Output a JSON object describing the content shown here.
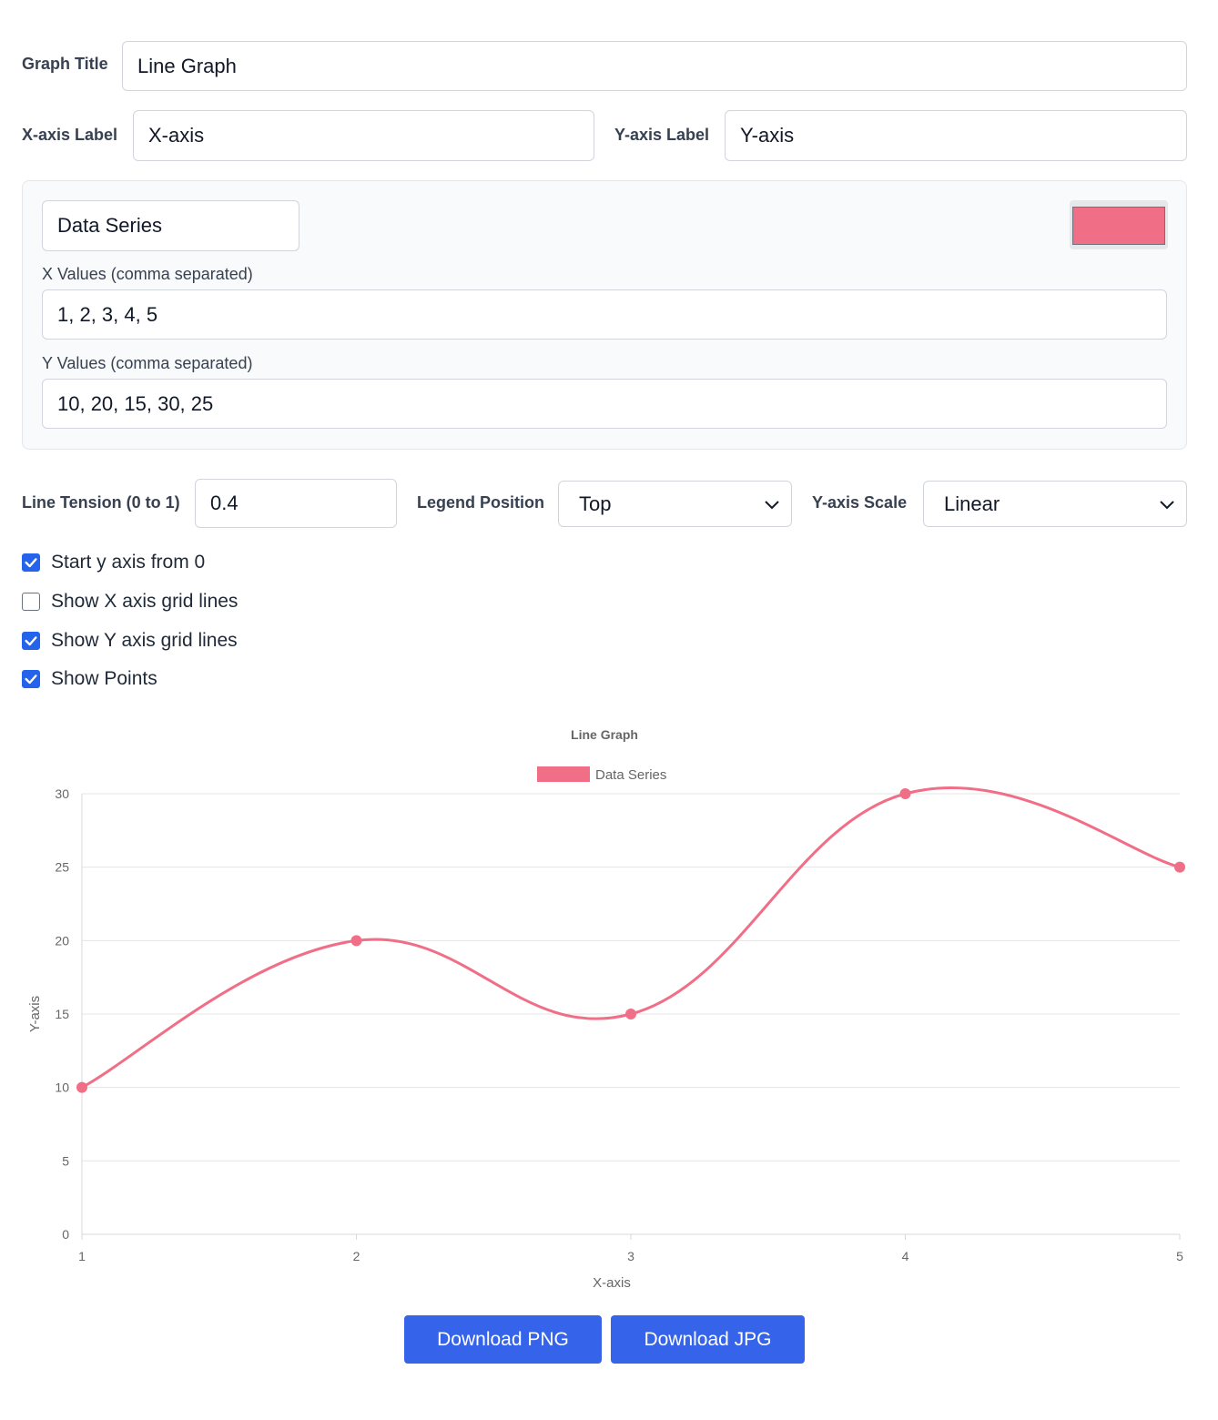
{
  "form": {
    "graph_title_label": "Graph Title",
    "graph_title_value": "Line Graph",
    "x_label_label": "X-axis Label",
    "x_label_value": "X-axis",
    "y_label_label": "Y-axis Label",
    "y_label_value": "Y-axis"
  },
  "series_panel": {
    "name_value": "Data Series",
    "color": "#f06f87",
    "x_values_label": "X Values (comma separated)",
    "x_values_value": "1, 2, 3, 4, 5",
    "y_values_label": "Y Values (comma separated)",
    "y_values_value": "10, 20, 15, 30, 25"
  },
  "options": {
    "tension_label": "Line Tension (0 to 1)",
    "tension_value": "0.4",
    "legend_label": "Legend Position",
    "legend_value": "Top",
    "scale_label": "Y-axis Scale",
    "scale_value": "Linear"
  },
  "checkboxes": [
    {
      "label": "Start y axis from 0",
      "checked": true
    },
    {
      "label": "Show X axis grid lines",
      "checked": false
    },
    {
      "label": "Show Y axis grid lines",
      "checked": true
    },
    {
      "label": "Show Points",
      "checked": true
    }
  ],
  "buttons": {
    "png": "Download PNG",
    "jpg": "Download JPG"
  },
  "chart_data": {
    "type": "line",
    "title": "Line Graph",
    "xlabel": "X-axis",
    "ylabel": "Y-axis",
    "x": [
      1,
      2,
      3,
      4,
      5
    ],
    "series": [
      {
        "name": "Data Series",
        "values": [
          10,
          20,
          15,
          30,
          25
        ],
        "color": "#f06f87"
      }
    ],
    "x_ticks": [
      "1",
      "2",
      "3",
      "4",
      "5"
    ],
    "y_ticks": [
      "0",
      "5",
      "10",
      "15",
      "20",
      "25",
      "30"
    ],
    "ylim": [
      0,
      30
    ],
    "legend_position": "top",
    "x_grid": false,
    "y_grid": true,
    "show_points": true,
    "tension": 0.4
  }
}
